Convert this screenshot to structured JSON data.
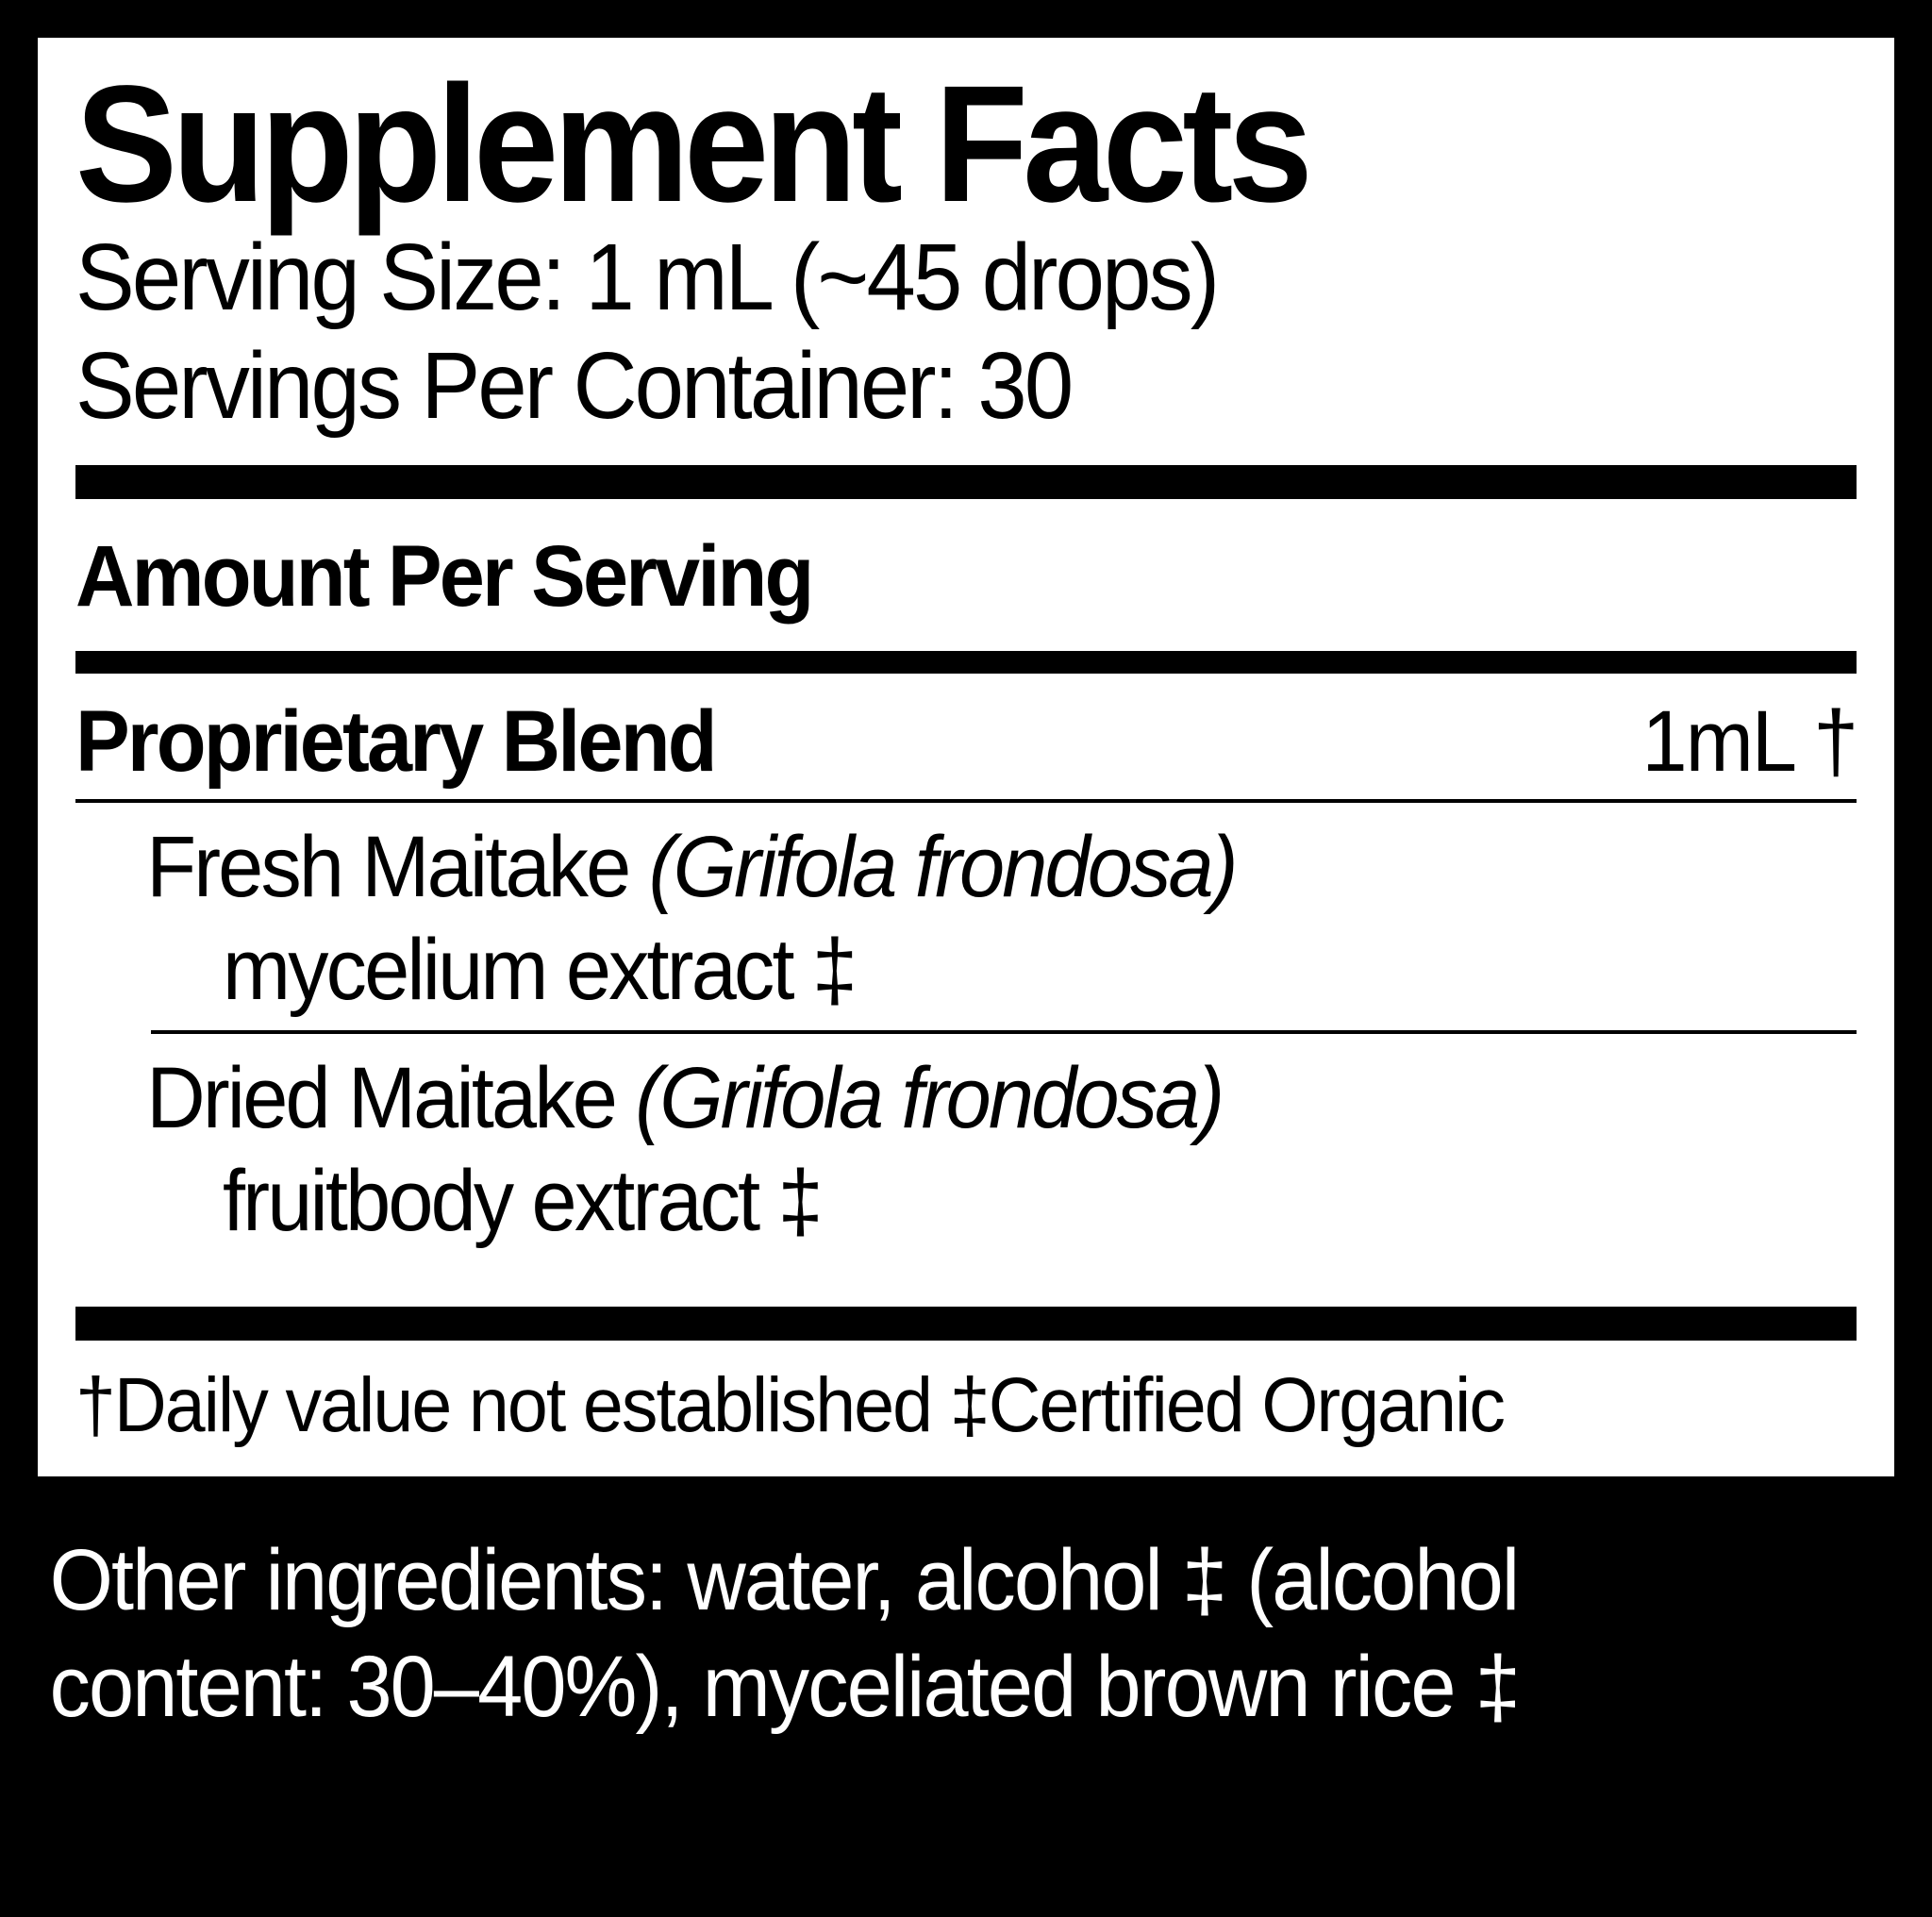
{
  "title": "Supplement Facts",
  "serving_size": "Serving Size: 1 mL (~45 drops)",
  "servings_per_container": "Servings Per Container: 30",
  "amount_per_serving": "Amount Per Serving",
  "blend": {
    "name": "Proprietary Blend",
    "amount": "1mL †"
  },
  "ingredients": [
    {
      "line1_a": "Fresh Maitake ",
      "line1_b": "(Grifola frondosa)",
      "line2": "mycelium extract ‡"
    },
    {
      "line1_a": "Dried Maitake ",
      "line1_b": "(Grifola frondosa)",
      "line2": "fruitbody extract ‡"
    }
  ],
  "footnotes": "†Daily value not established  ‡Certified Organic",
  "other_ingredients": "Other ingredients: water, alcohol ‡ (alcohol content: 30–40%), myceliated brown rice ‡"
}
